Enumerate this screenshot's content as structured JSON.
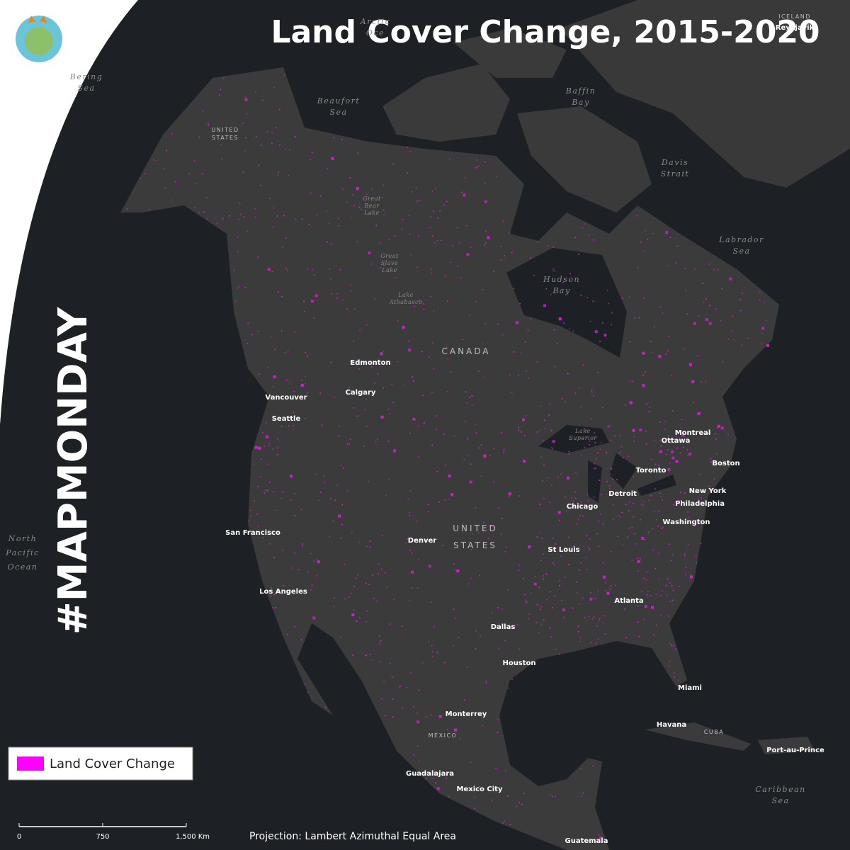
{
  "header": {
    "title": "Land Cover Change, 2015-2020",
    "hashtag": "#MAPMONDAY"
  },
  "legend": {
    "label": "Land Cover Change"
  },
  "scale_bar": {
    "labels": [
      "0",
      "750",
      "1,500 Km"
    ]
  },
  "projection": "Projection: Lambert Azimuthal Equal Area",
  "water_labels": [
    [
      "Arctic",
      "Oce"
    ],
    [
      "Bering",
      "Sea"
    ],
    [
      "Beaufort",
      "Sea"
    ],
    [
      "Baffin",
      "Bay"
    ],
    [
      "Davis",
      "Strait"
    ],
    [
      "Labrador",
      "Sea"
    ],
    [
      "Hudson",
      "Bay"
    ],
    [
      "North",
      "Pacific",
      "Ocean"
    ],
    [
      "Caribbean",
      "Sea"
    ],
    [
      "Great",
      "Bear",
      "Lake"
    ],
    [
      "Great",
      "Slave",
      "Lake"
    ],
    [
      "Lake",
      "Athabasco"
    ],
    [
      "Lake",
      "Superior"
    ]
  ],
  "country_labels": [
    [
      "UNITED",
      "STATES"
    ],
    [
      "CANADA"
    ],
    [
      "UNITED",
      "STATES"
    ],
    [
      "MÉXICO"
    ],
    [
      "CUBA"
    ],
    [
      "ICELAND"
    ]
  ],
  "city_labels": [
    "Edmonton",
    "Calgary",
    "Vancouver",
    "Seattle",
    "San Francisco",
    "Los Angeles",
    "Denver",
    "Dallas",
    "Houston",
    "Monterrey",
    "Guadalajara",
    "Mexico City",
    "Guatemala",
    "Chicago",
    "St Louis",
    "Detroit",
    "Toronto",
    "Montreal",
    "Ottawa",
    "Boston",
    "New York",
    "Philadelphia",
    "Washington",
    "Atlanta",
    "Miami",
    "Havana",
    "Port-au-Prince",
    "Reykjavik"
  ]
}
